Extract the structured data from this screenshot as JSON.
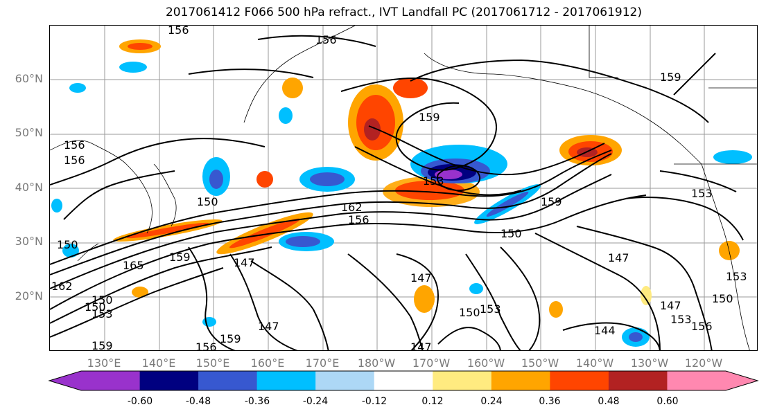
{
  "title": "2017061412 F066 500 hPa refract., IVT Landfall PC (2017061712 - 2017061912)",
  "lat_labels": [
    "60°N",
    "50°N",
    "40°N",
    "30°N",
    "20°N"
  ],
  "lon_labels": [
    "130°E",
    "140°E",
    "150°E",
    "160°E",
    "170°E",
    "180°W",
    "170°W",
    "160°W",
    "150°W",
    "140°W",
    "130°W",
    "120°W"
  ],
  "contour_labels": [
    "156",
    "156",
    "159",
    "159",
    "153",
    "156",
    "156",
    "162",
    "156",
    "150",
    "159",
    "150",
    "153",
    "150",
    "165",
    "159",
    "147",
    "162",
    "150",
    "153",
    "147",
    "147",
    "147",
    "150",
    "153",
    "147",
    "144",
    "147",
    "150",
    "153",
    "156",
    "153",
    "150",
    "159",
    "156",
    "159"
  ],
  "colorbar": {
    "colors": [
      "#9932cc",
      "#000080",
      "#3758d0",
      "#00bfff",
      "#add8f6",
      "#ffffff",
      "#ffeb80",
      "#ffa500",
      "#ff4500",
      "#b22222",
      "#ff88b0"
    ],
    "ticks": [
      "-0.60",
      "-0.48",
      "-0.36",
      "-0.24",
      "-0.12",
      "0.12",
      "0.24",
      "0.36",
      "0.48",
      "0.60"
    ]
  },
  "chart_data": {
    "type": "map",
    "field_contours": "500 hPa refractivity (black contours)",
    "shaded_field": "IVT Landfall PC",
    "contour_levels": [
      144,
      147,
      150,
      153,
      156,
      159,
      162,
      165
    ],
    "shading_levels": [
      -0.6,
      -0.48,
      -0.36,
      -0.24,
      -0.12,
      0.12,
      0.24,
      0.36,
      0.48,
      0.6
    ],
    "lat_range": [
      10,
      70
    ],
    "lon_range": [
      120,
      250
    ],
    "grid": true
  }
}
